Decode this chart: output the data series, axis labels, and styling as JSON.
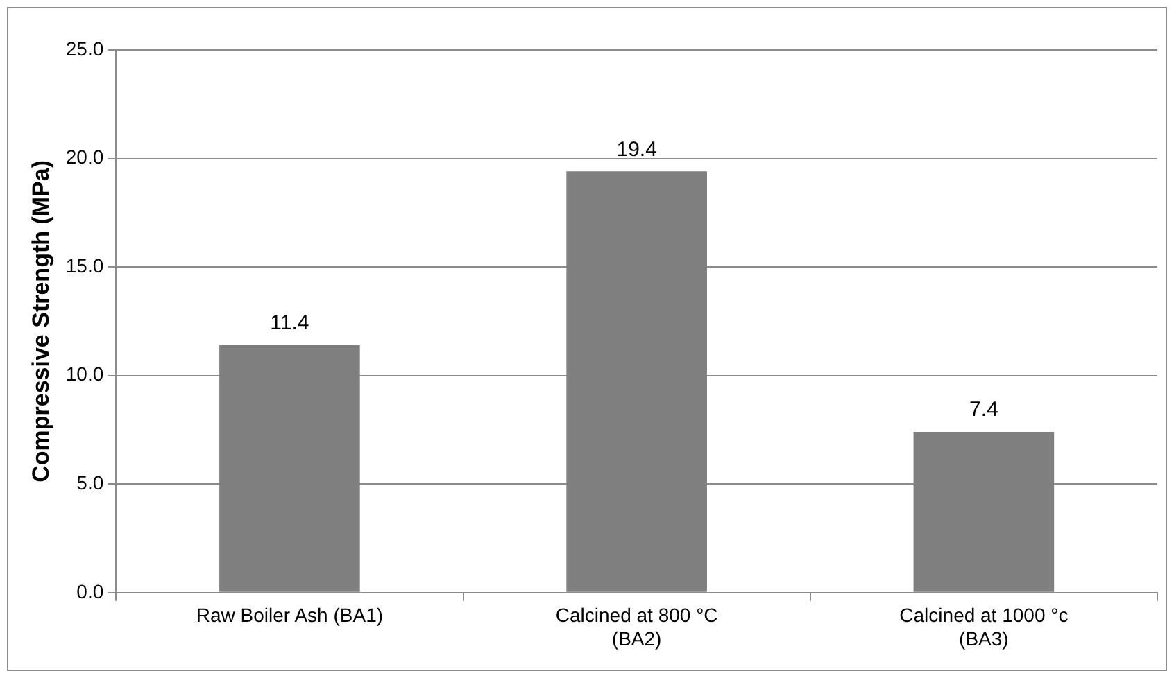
{
  "chart_data": {
    "type": "bar",
    "ylabel": "Compressive Strength (MPa)",
    "categories": [
      "Raw Boiler Ash (BA1)",
      "Calcined at 800 °C (BA2)",
      "Calcined at 1000 °c (BA3)"
    ],
    "values": [
      11.4,
      19.4,
      7.4
    ],
    "color": "#7f7f7f",
    "ylim": [
      0,
      25
    ],
    "yticks": [
      {
        "value": 0,
        "label": "0.0"
      },
      {
        "value": 5,
        "label": "5.0"
      },
      {
        "value": 10,
        "label": "10.0"
      },
      {
        "value": 15,
        "label": "15.0"
      },
      {
        "value": 20,
        "label": "20.0"
      },
      {
        "value": 25,
        "label": "25.0"
      }
    ],
    "grid": "y",
    "legend": false,
    "data_labels": true
  }
}
